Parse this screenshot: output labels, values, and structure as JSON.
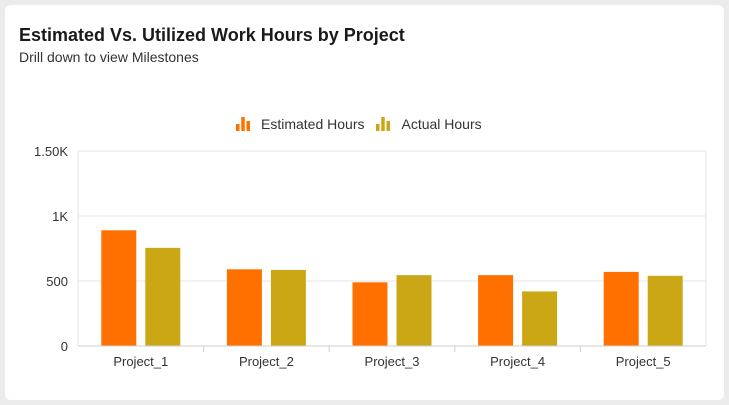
{
  "card": {
    "title": "Estimated Vs. Utilized Work Hours by Project",
    "subtitle": "Drill down to view Milestones"
  },
  "chart_data": {
    "type": "bar",
    "title": "Estimated Vs. Utilized Work Hours by Project",
    "subtitle": "Drill down to view Milestones",
    "categories": [
      "Project_1",
      "Project_2",
      "Project_3",
      "Project_4",
      "Project_5"
    ],
    "series": [
      {
        "name": "Estimated Hours",
        "color": "#ff7000",
        "values": [
          890,
          590,
          490,
          545,
          570
        ]
      },
      {
        "name": "Actual Hours",
        "color": "#cca715",
        "values": [
          755,
          585,
          545,
          420,
          540
        ]
      }
    ],
    "ylim": [
      0,
      1500
    ],
    "yticks": [
      {
        "value": 0,
        "label": "0"
      },
      {
        "value": 500,
        "label": "500"
      },
      {
        "value": 1000,
        "label": "1K"
      },
      {
        "value": 1500,
        "label": "1.50K"
      }
    ],
    "legend_position": "top-center",
    "grid": true
  }
}
